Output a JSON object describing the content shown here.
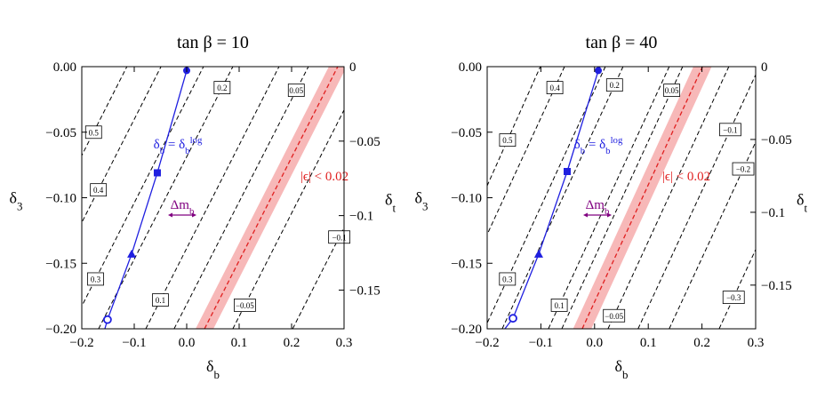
{
  "chart_data": [
    {
      "type": "contour",
      "title": "tan β = 10",
      "x_label": [
        "δ",
        "b"
      ],
      "y_label": [
        "δ",
        "3"
      ],
      "y2_label": [
        "δ",
        "t"
      ],
      "xlim": [
        -0.2,
        0.3
      ],
      "xticks": [
        {
          "value": -0.2,
          "label": "−0.2"
        },
        {
          "value": -0.1,
          "label": "−0.1"
        },
        {
          "value": 0,
          "label": "0.0"
        },
        0.1,
        0.2,
        0.3
      ],
      "ylim": [
        -0.2,
        0
      ],
      "yticks": [
        {
          "value": -0.2,
          "label": "−0.20"
        },
        {
          "value": -0.15,
          "label": "−0.15"
        },
        {
          "value": -0.1,
          "label": "−0.10"
        },
        {
          "value": -0.05,
          "label": "−0.05"
        },
        {
          "value": 0,
          "label": "0.00"
        }
      ],
      "y2lim": [
        -0.176,
        0
      ],
      "y2ticks": [
        {
          "value": -0.15,
          "label": "−0.15"
        },
        {
          "value": -0.1,
          "label": "−0.1"
        },
        {
          "value": -0.05,
          "label": "−0.05"
        },
        0
      ],
      "contours": [
        {
          "level": 0.5,
          "x": [
            -0.368,
            -0.114
          ],
          "y": [
            -0.2,
            0
          ]
        },
        {
          "level": 0.4,
          "x": [
            -0.303,
            -0.049
          ],
          "y": [
            -0.2,
            0
          ]
        },
        {
          "level": 0.3,
          "x": [
            -0.222,
            0.032
          ],
          "y": [
            -0.2,
            0
          ]
        },
        {
          "level": 0.2,
          "x": [
            -0.168,
            0.088
          ],
          "y": [
            -0.2,
            0
          ]
        },
        {
          "level": 0.1,
          "x": [
            -0.078,
            0.176
          ],
          "y": [
            -0.2,
            0
          ]
        },
        {
          "level": 0.05,
          "x": [
            -0.024,
            0.232
          ],
          "y": [
            -0.2,
            0
          ]
        },
        {
          "level": -0.05,
          "label": "−0.05",
          "x": [
            0.088,
            0.342
          ],
          "y": [
            -0.2,
            0
          ]
        },
        {
          "level": -0.1,
          "label": "−0.1",
          "x": [
            0.202,
            0.456
          ],
          "y": [
            -0.2,
            0
          ]
        }
      ],
      "band": {
        "label": "|ϵ| < 0.02",
        "color": "#f7b8b8",
        "line_color": "#e02020",
        "x_center": [
          0.034,
          0.288
        ],
        "x_lower": [
          0.017,
          0.271
        ],
        "x_upper": [
          0.051,
          0.305
        ],
        "y": [
          -0.2,
          0
        ]
      },
      "curve": {
        "color": "#1f1fe0",
        "label": [
          "δ",
          "b",
          " = δ",
          "b",
          "log"
        ],
        "x": [
          -0.156,
          -0.151,
          -0.105,
          -0.056,
          0.0,
          0.002
        ],
        "y": [
          -0.2,
          -0.193,
          -0.143,
          -0.081,
          -0.003,
          0
        ],
        "markers": [
          {
            "x": -0.151,
            "y": -0.193,
            "symbol": "circle-open"
          },
          {
            "x": -0.105,
            "y": -0.143,
            "symbol": "triangle"
          },
          {
            "x": -0.056,
            "y": -0.081,
            "symbol": "square"
          },
          {
            "x": 0.0,
            "y": -0.003,
            "symbol": "circle"
          }
        ]
      },
      "arrow_label": {
        "text": [
          "Δm",
          "b"
        ],
        "color": "#800080"
      }
    },
    {
      "type": "contour",
      "title": "tan β = 40",
      "x_label": [
        "δ",
        "b"
      ],
      "y_label": [
        "δ",
        "3"
      ],
      "y2_label": [
        "δ",
        "t"
      ],
      "xlim": [
        -0.2,
        0.3
      ],
      "xticks": [
        {
          "value": -0.2,
          "label": "−0.2"
        },
        {
          "value": -0.1,
          "label": "−0.1"
        },
        {
          "value": 0,
          "label": "0.0"
        },
        0.1,
        0.2,
        0.3
      ],
      "ylim": [
        -0.2,
        0
      ],
      "yticks": [
        {
          "value": -0.2,
          "label": "−0.20"
        },
        {
          "value": -0.15,
          "label": "−0.15"
        },
        {
          "value": -0.1,
          "label": "−0.10"
        },
        {
          "value": -0.05,
          "label": "−0.05"
        },
        {
          "value": 0,
          "label": "0.00"
        }
      ],
      "y2lim": [
        -0.18,
        0
      ],
      "y2ticks": [
        {
          "value": -0.15,
          "label": "−0.15"
        },
        {
          "value": -0.1,
          "label": "−0.1"
        },
        {
          "value": -0.05,
          "label": "−0.05"
        },
        0
      ],
      "contours": [
        {
          "level": 0.5,
          "x": [
            -0.319,
            -0.101
          ],
          "y": [
            -0.2,
            0
          ]
        },
        {
          "level": 0.4,
          "x": [
            -0.281,
            -0.056
          ],
          "y": [
            -0.2,
            0
          ]
        },
        {
          "level": 0.3,
          "x": [
            -0.205,
            0.02
          ],
          "y": [
            -0.2,
            0
          ]
        },
        {
          "level": 0.2,
          "x": [
            -0.172,
            0.053
          ],
          "y": [
            -0.2,
            0
          ]
        },
        {
          "level": 0.1,
          "x": [
            -0.086,
            0.139
          ],
          "y": [
            -0.2,
            0
          ]
        },
        {
          "level": 0.05,
          "x": [
            -0.061,
            0.164
          ],
          "y": [
            -0.2,
            0
          ]
        },
        {
          "level": -0.05,
          "label": "−0.05",
          "x": [
            0.025,
            0.25
          ],
          "y": [
            -0.2,
            0
          ]
        },
        {
          "level": -0.1,
          "label": "−0.1",
          "x": [
            0.081,
            0.307
          ],
          "y": [
            -0.2,
            0
          ]
        },
        {
          "level": -0.2,
          "label": "−0.2",
          "x": [
            0.139,
            0.365
          ],
          "y": [
            -0.2,
            0
          ]
        },
        {
          "level": -0.3,
          "label": "−0.3",
          "x": [
            0.232,
            0.457
          ],
          "y": [
            -0.2,
            0
          ]
        }
      ],
      "band": {
        "label": "|ϵ| < 0.02",
        "color": "#f7b8b8",
        "line_color": "#e02020",
        "x_center": [
          -0.023,
          0.201
        ],
        "x_lower": [
          -0.04,
          0.184
        ],
        "x_upper": [
          -0.006,
          0.218
        ],
        "y": [
          -0.2,
          0
        ]
      },
      "curve": {
        "color": "#1f1fe0",
        "label": [
          "δ",
          "b",
          " = δ",
          "b",
          "log"
        ],
        "x": [
          -0.167,
          -0.152,
          -0.104,
          -0.051,
          0.007,
          0.01
        ],
        "y": [
          -0.2,
          -0.192,
          -0.143,
          -0.08,
          -0.003,
          0
        ],
        "markers": [
          {
            "x": -0.152,
            "y": -0.192,
            "symbol": "circle-open"
          },
          {
            "x": -0.104,
            "y": -0.143,
            "symbol": "triangle"
          },
          {
            "x": -0.051,
            "y": -0.08,
            "symbol": "square"
          },
          {
            "x": 0.007,
            "y": -0.003,
            "symbol": "circle"
          }
        ]
      },
      "arrow_label": {
        "text": [
          "Δm",
          "b"
        ],
        "color": "#800080"
      }
    }
  ]
}
